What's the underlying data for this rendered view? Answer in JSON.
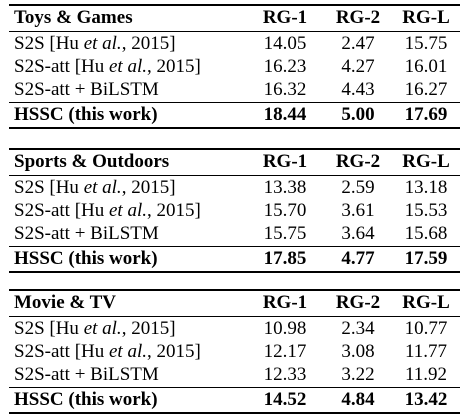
{
  "tables": [
    {
      "category": "Toys & Games",
      "headers": [
        "RG-1",
        "RG-2",
        "RG-L"
      ],
      "rows": [
        {
          "pre": "S2S [Hu ",
          "ital": "et al.",
          "post": ", 2015]",
          "v": [
            "14.05",
            "2.47",
            "15.75"
          ]
        },
        {
          "pre": "S2S-att [Hu ",
          "ital": "et al.",
          "post": ", 2015]",
          "v": [
            "16.23",
            "4.27",
            "16.01"
          ]
        },
        {
          "pre": "S2S-att + BiLSTM",
          "ital": "",
          "post": "",
          "v": [
            "16.32",
            "4.43",
            "16.27"
          ]
        }
      ],
      "final": {
        "name": "HSSC (this work)",
        "v": [
          "18.44",
          "5.00",
          "17.69"
        ]
      }
    },
    {
      "category": "Sports & Outdoors",
      "headers": [
        "RG-1",
        "RG-2",
        "RG-L"
      ],
      "rows": [
        {
          "pre": "S2S [Hu ",
          "ital": "et al.",
          "post": ", 2015]",
          "v": [
            "13.38",
            "2.59",
            "13.18"
          ]
        },
        {
          "pre": "S2S-att [Hu ",
          "ital": "et al.",
          "post": ", 2015]",
          "v": [
            "15.70",
            "3.61",
            "15.53"
          ]
        },
        {
          "pre": "S2S-att + BiLSTM",
          "ital": "",
          "post": "",
          "v": [
            "15.75",
            "3.64",
            "15.68"
          ]
        }
      ],
      "final": {
        "name": "HSSC (this work)",
        "v": [
          "17.85",
          "4.77",
          "17.59"
        ]
      }
    },
    {
      "category": "Movie & TV",
      "headers": [
        "RG-1",
        "RG-2",
        "RG-L"
      ],
      "rows": [
        {
          "pre": "S2S [Hu ",
          "ital": "et al.",
          "post": ", 2015]",
          "v": [
            "10.98",
            "2.34",
            "10.77"
          ]
        },
        {
          "pre": "S2S-att [Hu ",
          "ital": "et al.",
          "post": ", 2015]",
          "v": [
            "12.17",
            "3.08",
            "11.77"
          ]
        },
        {
          "pre": "S2S-att + BiLSTM",
          "ital": "",
          "post": "",
          "v": [
            "12.33",
            "3.22",
            "11.92"
          ]
        }
      ],
      "final": {
        "name": "HSSC (this work)",
        "v": [
          "14.52",
          "4.84",
          "13.42"
        ]
      }
    }
  ]
}
